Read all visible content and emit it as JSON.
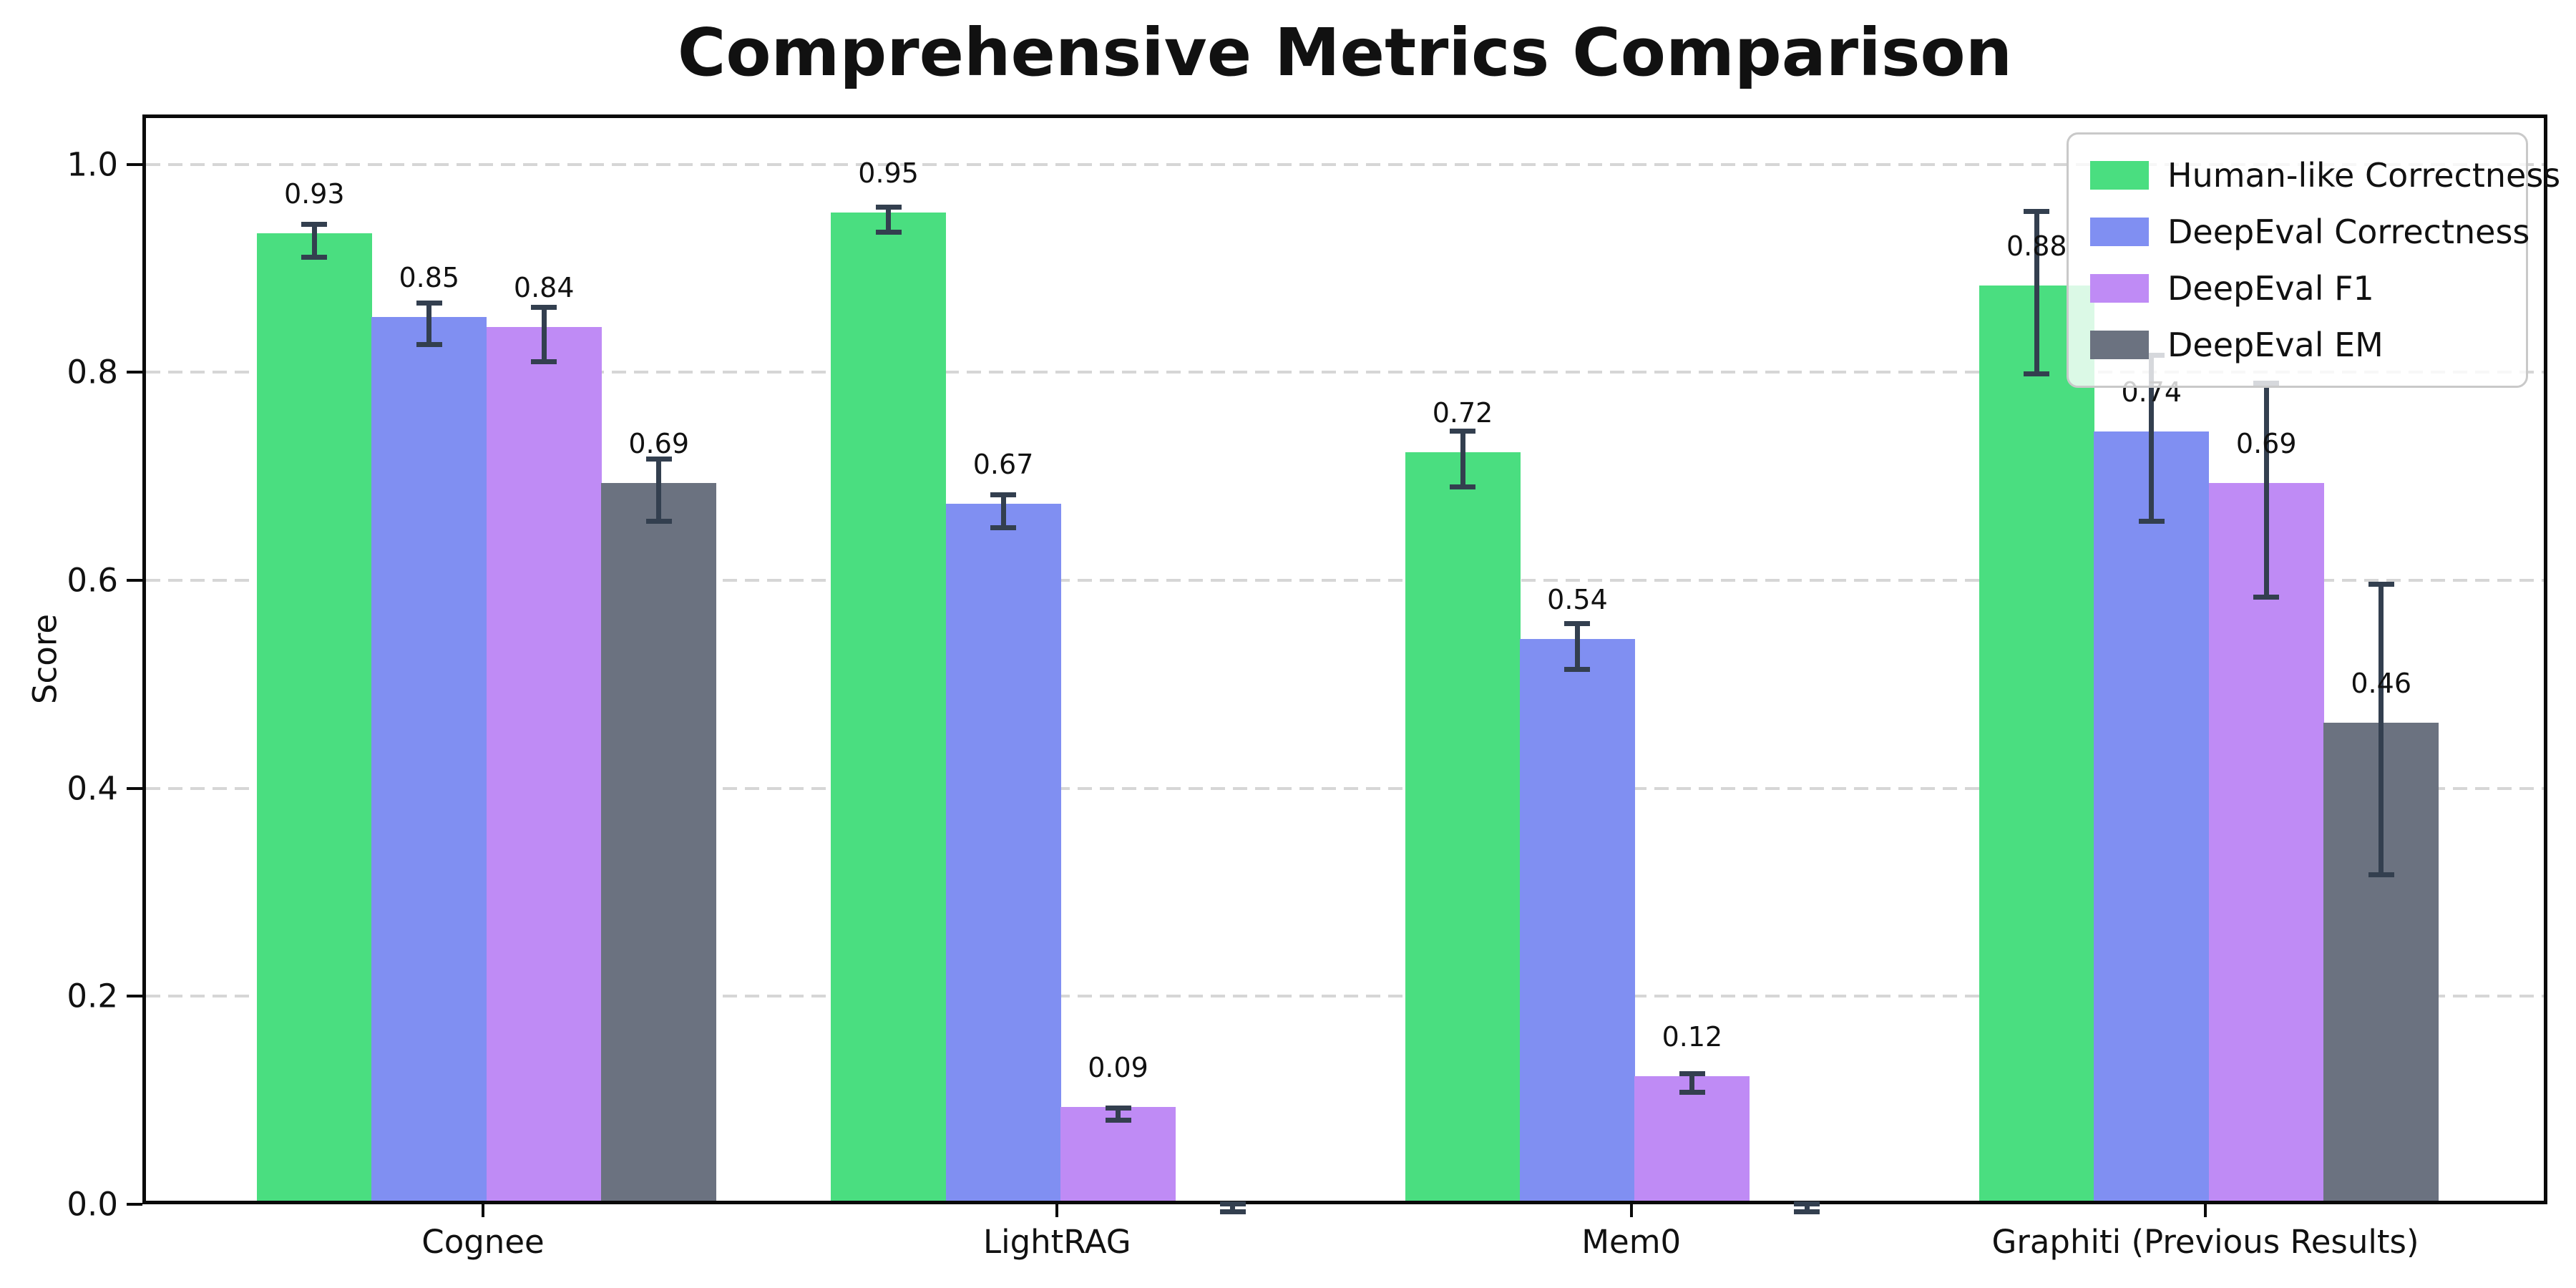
{
  "chart_data": {
    "type": "bar",
    "title": "Comprehensive Metrics Comparison",
    "ylabel": "Score",
    "xlabel": "",
    "categories": [
      "Cognee",
      "LightRAG",
      "Mem0",
      "Graphiti (Previous Results)"
    ],
    "series": [
      {
        "name": "Human-like Correctness",
        "color": "#4ade80",
        "values": [
          0.93,
          0.95,
          0.72,
          0.88
        ],
        "errors": [
          0.016,
          0.012,
          0.027,
          0.078
        ],
        "labels": [
          "0.93",
          "0.95",
          "0.72",
          "0.88"
        ]
      },
      {
        "name": "DeepEval Correctness",
        "color": "#808ff2",
        "values": [
          0.85,
          0.67,
          0.54,
          0.74
        ],
        "errors": [
          0.02,
          0.016,
          0.022,
          0.08
        ],
        "labels": [
          "0.85",
          "0.67",
          "0.54",
          "0.74"
        ]
      },
      {
        "name": "DeepEval F1",
        "color": "#bf8bf5",
        "values": [
          0.84,
          0.09,
          0.12,
          0.69
        ],
        "errors": [
          0.026,
          0.006,
          0.009,
          0.103
        ],
        "labels": [
          "0.84",
          "0.09",
          "0.12",
          "0.69"
        ]
      },
      {
        "name": "DeepEval EM",
        "color": "#6b7280",
        "values": [
          0.69,
          0.0,
          0.0,
          0.46
        ],
        "errors": [
          0.03,
          0.004,
          0.004,
          0.14
        ],
        "labels": [
          "0.69",
          null,
          null,
          "0.46"
        ]
      }
    ],
    "yticks": [
      0.0,
      0.2,
      0.4,
      0.6,
      0.8,
      1.0
    ],
    "ytick_labels": [
      "0.0",
      "0.2",
      "0.4",
      "0.6",
      "0.8",
      "1.0"
    ],
    "ylim": [
      0,
      1.048
    ],
    "grid": "horizontal-dashed",
    "legend_position": "upper-right",
    "error_bar_color": "#333f4f"
  }
}
